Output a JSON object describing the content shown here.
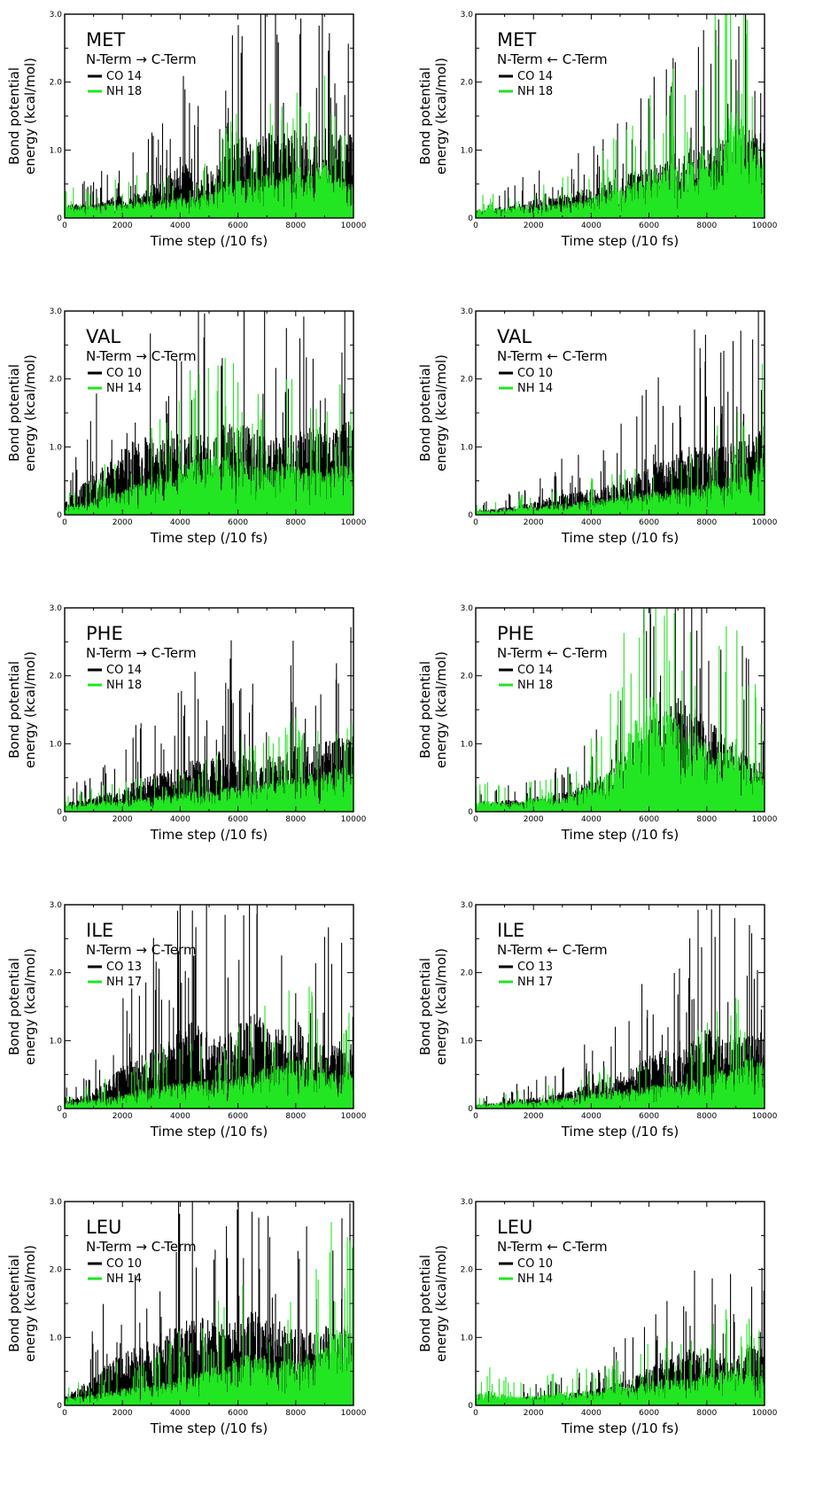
{
  "page": {
    "ylabel_line1": "Bond potential",
    "ylabel_line2": "energy (kcal/mol)",
    "xlabel": "Time step (/10 fs)"
  },
  "chart_data": [
    {
      "type": "line",
      "residue": "MET",
      "direction": {
        "left": "N-Term",
        "arrow": "→",
        "right": "C-Term"
      },
      "xlim": [
        0,
        10000
      ],
      "ylim": [
        0,
        3.0
      ],
      "x_ticks": [
        "0",
        "2000",
        "4000",
        "6000",
        "8000",
        "10000"
      ],
      "y_ticks": [
        "0",
        "1.0",
        "2.0",
        "3.0"
      ],
      "series": [
        {
          "name": "CO 14",
          "color": "#000000",
          "sample_every": 500,
          "values": [
            0.13,
            0.16,
            0.14,
            0.22,
            0.24,
            0.26,
            0.35,
            0.38,
            0.7,
            0.42,
            0.48,
            0.62,
            0.95,
            0.8,
            0.92,
            0.88,
            0.98,
            0.82,
            0.95,
            0.9,
            0.88
          ]
        },
        {
          "name": "NH 18",
          "color": "#21e621",
          "sample_every": 500,
          "values": [
            0.12,
            0.15,
            0.12,
            0.16,
            0.15,
            0.17,
            0.18,
            0.2,
            0.22,
            0.24,
            0.26,
            0.35,
            0.42,
            0.45,
            0.52,
            0.46,
            0.55,
            0.5,
            0.6,
            0.42,
            0.4
          ]
        }
      ]
    },
    {
      "type": "line",
      "residue": "MET",
      "direction": {
        "left": "N-Term",
        "arrow": "←",
        "right": "C-Term"
      },
      "xlim": [
        0,
        10000
      ],
      "ylim": [
        0,
        3.0
      ],
      "x_ticks": [
        "0",
        "2000",
        "4000",
        "6000",
        "8000",
        "10000"
      ],
      "y_ticks": [
        "0",
        "1.0",
        "2.0",
        "3.0"
      ],
      "series": [
        {
          "name": "CO 14",
          "color": "#000000",
          "sample_every": 500,
          "values": [
            0.08,
            0.1,
            0.12,
            0.15,
            0.2,
            0.22,
            0.24,
            0.28,
            0.32,
            0.38,
            0.45,
            0.5,
            0.52,
            0.62,
            0.7,
            0.78,
            0.74,
            0.82,
            0.86,
            0.95,
            0.9
          ]
        },
        {
          "name": "NH 18",
          "color": "#21e621",
          "sample_every": 500,
          "values": [
            0.1,
            0.12,
            0.1,
            0.14,
            0.12,
            0.15,
            0.16,
            0.18,
            0.22,
            0.3,
            0.32,
            0.4,
            0.48,
            0.55,
            0.6,
            0.65,
            0.7,
            0.95,
            1.2,
            0.9,
            0.7
          ]
        }
      ]
    },
    {
      "type": "line",
      "residue": "VAL",
      "direction": {
        "left": "N-Term",
        "arrow": "→",
        "right": "C-Term"
      },
      "xlim": [
        0,
        10000
      ],
      "ylim": [
        0,
        3.0
      ],
      "x_ticks": [
        "0",
        "2000",
        "4000",
        "6000",
        "8000",
        "10000"
      ],
      "y_ticks": [
        "0",
        "1.0",
        "2.0",
        "3.0"
      ],
      "series": [
        {
          "name": "CO 10",
          "color": "#000000",
          "sample_every": 500,
          "values": [
            0.12,
            0.3,
            0.45,
            0.55,
            0.72,
            0.8,
            0.85,
            0.78,
            0.92,
            0.88,
            0.82,
            0.95,
            0.98,
            0.9,
            0.88,
            0.8,
            0.86,
            0.92,
            0.84,
            0.95,
            1.0
          ]
        },
        {
          "name": "NH 14",
          "color": "#21e621",
          "sample_every": 500,
          "values": [
            0.08,
            0.12,
            0.18,
            0.22,
            0.26,
            0.35,
            0.42,
            0.45,
            0.52,
            0.58,
            0.62,
            0.66,
            0.6,
            0.55,
            0.5,
            0.58,
            0.52,
            0.5,
            0.48,
            0.55,
            0.5
          ]
        }
      ]
    },
    {
      "type": "line",
      "residue": "VAL",
      "direction": {
        "left": "N-Term",
        "arrow": "←",
        "right": "C-Term"
      },
      "xlim": [
        0,
        10000
      ],
      "ylim": [
        0,
        3.0
      ],
      "x_ticks": [
        "0",
        "2000",
        "4000",
        "6000",
        "8000",
        "10000"
      ],
      "y_ticks": [
        "0",
        "1.0",
        "2.0",
        "3.0"
      ],
      "series": [
        {
          "name": "CO 10",
          "color": "#000000",
          "sample_every": 500,
          "values": [
            0.05,
            0.06,
            0.08,
            0.1,
            0.14,
            0.18,
            0.22,
            0.25,
            0.28,
            0.32,
            0.35,
            0.45,
            0.52,
            0.6,
            0.68,
            0.75,
            0.7,
            0.72,
            0.78,
            0.85,
            0.95
          ]
        },
        {
          "name": "NH 14",
          "color": "#21e621",
          "sample_every": 500,
          "values": [
            0.04,
            0.05,
            0.06,
            0.08,
            0.08,
            0.1,
            0.12,
            0.14,
            0.15,
            0.18,
            0.2,
            0.22,
            0.24,
            0.26,
            0.28,
            0.3,
            0.35,
            0.38,
            0.4,
            0.45,
            0.7
          ]
        }
      ]
    },
    {
      "type": "line",
      "residue": "PHE",
      "direction": {
        "left": "N-Term",
        "arrow": "→",
        "right": "C-Term"
      },
      "xlim": [
        0,
        10000
      ],
      "ylim": [
        0,
        3.0
      ],
      "x_ticks": [
        "0",
        "2000",
        "4000",
        "6000",
        "8000",
        "10000"
      ],
      "y_ticks": [
        "0",
        "1.0",
        "2.0",
        "3.0"
      ],
      "series": [
        {
          "name": "CO 14",
          "color": "#000000",
          "sample_every": 500,
          "values": [
            0.1,
            0.12,
            0.15,
            0.2,
            0.22,
            0.35,
            0.4,
            0.42,
            0.48,
            0.55,
            0.52,
            0.7,
            0.65,
            0.55,
            0.58,
            0.6,
            0.7,
            0.68,
            0.75,
            0.8,
            0.85
          ]
        },
        {
          "name": "NH 18",
          "color": "#21e621",
          "sample_every": 500,
          "values": [
            0.08,
            0.1,
            0.1,
            0.12,
            0.12,
            0.14,
            0.16,
            0.18,
            0.2,
            0.22,
            0.22,
            0.25,
            0.28,
            0.3,
            0.32,
            0.35,
            0.38,
            0.4,
            0.42,
            0.48,
            0.5
          ]
        }
      ]
    },
    {
      "type": "line",
      "residue": "PHE",
      "direction": {
        "left": "N-Term",
        "arrow": "←",
        "right": "C-Term"
      },
      "xlim": [
        0,
        10000
      ],
      "ylim": [
        0,
        3.0
      ],
      "x_ticks": [
        "0",
        "2000",
        "4000",
        "6000",
        "8000",
        "10000"
      ],
      "y_ticks": [
        "0",
        "1.0",
        "2.0",
        "3.0"
      ],
      "series": [
        {
          "name": "CO 14",
          "color": "#000000",
          "sample_every": 500,
          "values": [
            0.08,
            0.1,
            0.12,
            0.14,
            0.16,
            0.18,
            0.2,
            0.25,
            0.35,
            0.4,
            0.55,
            0.8,
            0.95,
            1.05,
            1.2,
            1.1,
            1.0,
            0.85,
            0.7,
            0.6,
            0.55
          ]
        },
        {
          "name": "NH 18",
          "color": "#21e621",
          "sample_every": 500,
          "values": [
            0.1,
            0.12,
            0.1,
            0.12,
            0.14,
            0.15,
            0.16,
            0.2,
            0.3,
            0.4,
            0.6,
            1.0,
            1.25,
            1.1,
            0.95,
            0.85,
            0.75,
            0.7,
            0.8,
            0.55,
            0.4
          ]
        }
      ]
    },
    {
      "type": "line",
      "residue": "ILE",
      "direction": {
        "left": "N-Term",
        "arrow": "→",
        "right": "C-Term"
      },
      "xlim": [
        0,
        10000
      ],
      "ylim": [
        0,
        3.0
      ],
      "x_ticks": [
        "0",
        "2000",
        "4000",
        "6000",
        "8000",
        "10000"
      ],
      "y_ticks": [
        "0",
        "1.0",
        "2.0",
        "3.0"
      ],
      "series": [
        {
          "name": "CO 13",
          "color": "#000000",
          "sample_every": 500,
          "values": [
            0.08,
            0.12,
            0.2,
            0.3,
            0.45,
            0.55,
            0.65,
            0.72,
            0.85,
            0.95,
            0.8,
            0.75,
            0.9,
            1.05,
            0.88,
            0.82,
            1.0,
            0.78,
            0.7,
            0.72,
            0.68
          ]
        },
        {
          "name": "NH 17",
          "color": "#21e621",
          "sample_every": 500,
          "values": [
            0.06,
            0.08,
            0.1,
            0.12,
            0.15,
            0.2,
            0.22,
            0.25,
            0.28,
            0.3,
            0.3,
            0.32,
            0.35,
            0.4,
            0.45,
            0.5,
            0.55,
            0.48,
            0.42,
            0.4,
            0.38
          ]
        }
      ]
    },
    {
      "type": "line",
      "residue": "ILE",
      "direction": {
        "left": "N-Term",
        "arrow": "←",
        "right": "C-Term"
      },
      "xlim": [
        0,
        10000
      ],
      "ylim": [
        0,
        3.0
      ],
      "x_ticks": [
        "0",
        "2000",
        "4000",
        "6000",
        "8000",
        "10000"
      ],
      "y_ticks": [
        "0",
        "1.0",
        "2.0",
        "3.0"
      ],
      "series": [
        {
          "name": "CO 13",
          "color": "#000000",
          "sample_every": 500,
          "values": [
            0.05,
            0.06,
            0.08,
            0.1,
            0.12,
            0.14,
            0.18,
            0.22,
            0.28,
            0.32,
            0.38,
            0.45,
            0.55,
            0.65,
            0.58,
            0.72,
            0.85,
            0.8,
            0.78,
            0.85,
            0.82
          ]
        },
        {
          "name": "NH 17",
          "color": "#21e621",
          "sample_every": 500,
          "values": [
            0.05,
            0.05,
            0.06,
            0.08,
            0.08,
            0.1,
            0.12,
            0.14,
            0.16,
            0.18,
            0.2,
            0.22,
            0.24,
            0.26,
            0.28,
            0.3,
            0.35,
            0.4,
            0.45,
            0.55,
            0.5
          ]
        }
      ]
    },
    {
      "type": "line",
      "residue": "LEU",
      "direction": {
        "left": "N-Term",
        "arrow": "→",
        "right": "C-Term"
      },
      "xlim": [
        0,
        10000
      ],
      "ylim": [
        0,
        3.0
      ],
      "x_ticks": [
        "0",
        "2000",
        "4000",
        "6000",
        "8000",
        "10000"
      ],
      "y_ticks": [
        "0",
        "1.0",
        "2.0",
        "3.0"
      ],
      "series": [
        {
          "name": "CO 10",
          "color": "#000000",
          "sample_every": 500,
          "values": [
            0.1,
            0.2,
            0.3,
            0.45,
            0.55,
            0.62,
            0.7,
            0.8,
            0.88,
            0.95,
            0.9,
            0.85,
            0.92,
            1.0,
            0.95,
            0.88,
            0.82,
            0.78,
            0.85,
            0.8,
            0.9
          ]
        },
        {
          "name": "NH 14",
          "color": "#21e621",
          "sample_every": 500,
          "values": [
            0.08,
            0.1,
            0.12,
            0.15,
            0.18,
            0.2,
            0.22,
            0.25,
            0.3,
            0.35,
            0.4,
            0.45,
            0.5,
            0.55,
            0.52,
            0.48,
            0.5,
            0.55,
            0.6,
            0.9,
            0.8
          ]
        }
      ]
    },
    {
      "type": "line",
      "residue": "LEU",
      "direction": {
        "left": "N-Term",
        "arrow": "←",
        "right": "C-Term"
      },
      "xlim": [
        0,
        10000
      ],
      "ylim": [
        0,
        3.0
      ],
      "x_ticks": [
        "0",
        "2000",
        "4000",
        "6000",
        "8000",
        "10000"
      ],
      "y_ticks": [
        "0",
        "1.0",
        "2.0",
        "3.0"
      ],
      "series": [
        {
          "name": "CO 10",
          "color": "#000000",
          "sample_every": 500,
          "values": [
            0.05,
            0.06,
            0.07,
            0.08,
            0.1,
            0.1,
            0.12,
            0.14,
            0.16,
            0.2,
            0.25,
            0.3,
            0.4,
            0.5,
            0.55,
            0.6,
            0.62,
            0.55,
            0.5,
            0.65,
            0.6
          ]
        },
        {
          "name": "NH 14",
          "color": "#21e621",
          "sample_every": 500,
          "values": [
            0.12,
            0.15,
            0.12,
            0.1,
            0.1,
            0.12,
            0.14,
            0.15,
            0.16,
            0.18,
            0.2,
            0.22,
            0.25,
            0.28,
            0.3,
            0.32,
            0.35,
            0.38,
            0.4,
            0.35,
            0.3
          ]
        }
      ]
    }
  ]
}
